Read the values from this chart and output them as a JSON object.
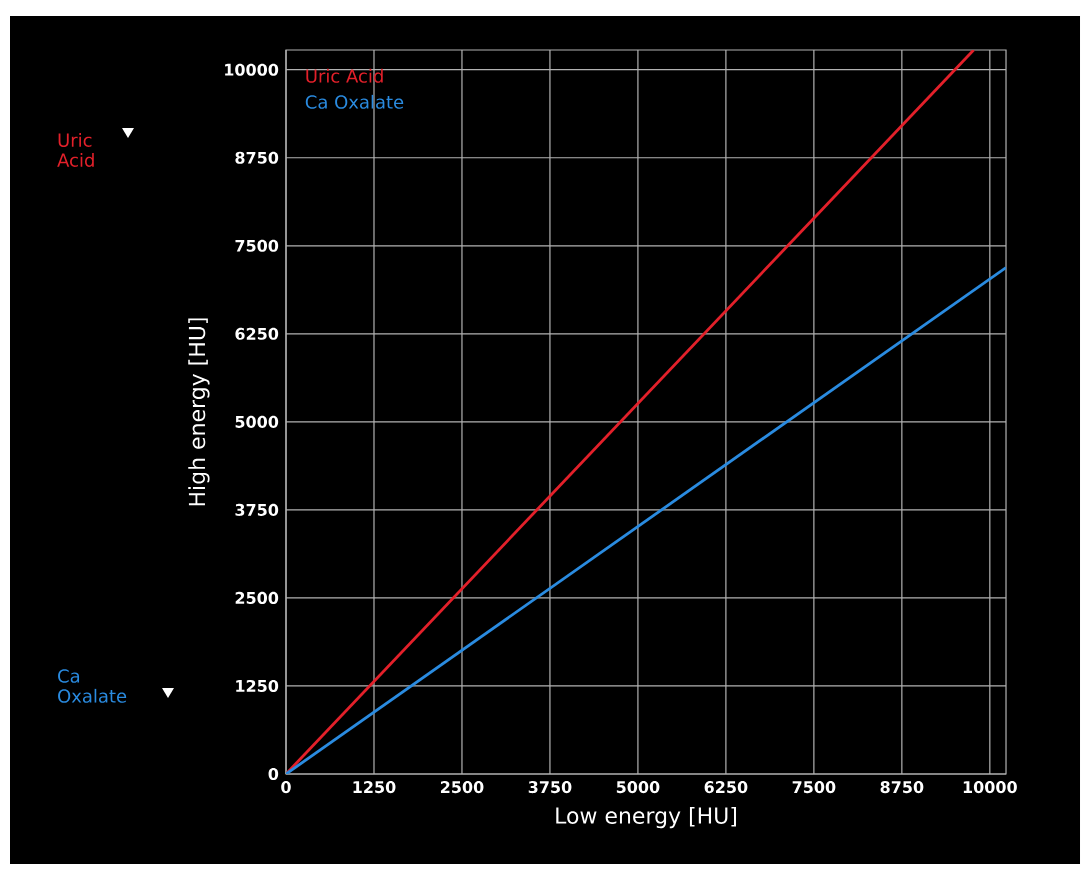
{
  "chart_data": {
    "type": "line",
    "xlabel": "Low energy [HU]",
    "ylabel": "High energy [HU]",
    "series": [
      {
        "name": "Uric Acid",
        "color": "#e3202a",
        "x": [
          0,
          9770
        ],
        "values": [
          0,
          10280
        ]
      },
      {
        "name": "Ca Oxalate",
        "color": "#2a8be0",
        "x": [
          0,
          10230
        ],
        "values": [
          0,
          7190
        ]
      }
    ],
    "xlim": [
      0,
      10230
    ],
    "ylim": [
      0,
      10280
    ],
    "xticks": [
      0,
      1250,
      2500,
      3750,
      5000,
      6250,
      7500,
      8750,
      10000
    ],
    "yticks": [
      0,
      1250,
      2500,
      3750,
      5000,
      6250,
      7500,
      8750,
      10000
    ],
    "annotations": [
      "Uric Acid",
      "Ca Oxalate"
    ],
    "grid": true,
    "legend": "top left",
    "marker": "none",
    "line_style": "solid"
  }
}
